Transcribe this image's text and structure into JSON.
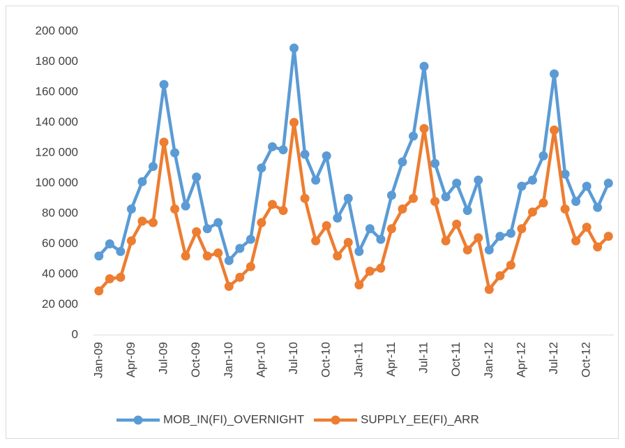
{
  "chart_data": {
    "type": "line",
    "categories": [
      "Jan-09",
      null,
      null,
      "Apr-09",
      null,
      null,
      "Jul-09",
      null,
      null,
      "Oct-09",
      null,
      null,
      "Jan-10",
      null,
      null,
      "Apr-10",
      null,
      null,
      "Jul-10",
      null,
      null,
      "Oct-10",
      null,
      null,
      "Jan-11",
      null,
      null,
      "Apr-11",
      null,
      null,
      "Jul-11",
      null,
      null,
      "Oct-11",
      null,
      null,
      "Jan-12",
      null,
      null,
      "Apr-12",
      null,
      null,
      "Jul-12",
      null,
      null,
      "Oct-12",
      null,
      null
    ],
    "series": [
      {
        "name": "MOB_IN(FI)_OVERNIGHT",
        "color": "#5b9bd5",
        "values": [
          52000,
          60000,
          55000,
          83000,
          101000,
          111000,
          165000,
          120000,
          85000,
          104000,
          70000,
          74000,
          49000,
          57000,
          63000,
          110000,
          124000,
          122000,
          189000,
          119000,
          102000,
          118000,
          77000,
          90000,
          55000,
          70000,
          63000,
          92000,
          114000,
          131000,
          177000,
          113000,
          91000,
          100000,
          82000,
          102000,
          56000,
          65000,
          67000,
          98000,
          102000,
          118000,
          172000,
          106000,
          88000,
          98000,
          84000,
          100000
        ]
      },
      {
        "name": "SUPPLY_EE(FI)_ARR",
        "color": "#ed7d31",
        "values": [
          29000,
          37000,
          38000,
          62000,
          75000,
          74000,
          127000,
          83000,
          52000,
          68000,
          52000,
          54000,
          32000,
          38000,
          45000,
          74000,
          86000,
          82000,
          140000,
          90000,
          62000,
          72000,
          52000,
          61000,
          33000,
          42000,
          44000,
          70000,
          83000,
          90000,
          136000,
          88000,
          62000,
          73000,
          56000,
          64000,
          30000,
          39000,
          46000,
          70000,
          81000,
          87000,
          135000,
          83000,
          62000,
          71000,
          58000,
          65000
        ]
      }
    ],
    "ylim": [
      0,
      200000
    ],
    "yticks": [
      0,
      {
        "value": 20000,
        "label": "20 000"
      },
      {
        "value": 40000,
        "label": "40 000"
      },
      {
        "value": 60000,
        "label": "60 000"
      },
      {
        "value": 80000,
        "label": "80 000"
      },
      {
        "value": 100000,
        "label": "100 000"
      },
      {
        "value": 120000,
        "label": "120 000"
      },
      {
        "value": 140000,
        "label": "140 000"
      },
      {
        "value": 160000,
        "label": "160 000"
      },
      {
        "value": 180000,
        "label": "180 000"
      },
      {
        "value": 200000,
        "label": "200 000"
      }
    ],
    "grid": false,
    "legend": "bottom"
  }
}
